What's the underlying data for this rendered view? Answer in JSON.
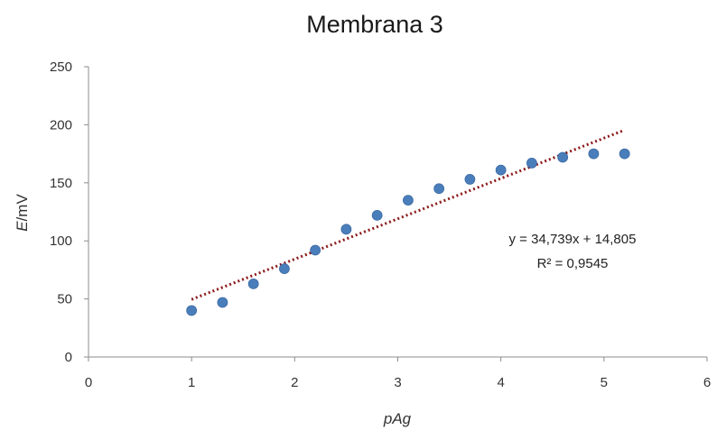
{
  "chart_data": {
    "type": "scatter",
    "title": "Membrana 3",
    "xlabel": "pAg",
    "ylabel_italic": "E",
    "ylabel_rest": "/mV",
    "xlim": [
      0,
      6
    ],
    "ylim": [
      0,
      250
    ],
    "x_ticks": [
      0,
      1,
      2,
      3,
      4,
      5,
      6
    ],
    "y_ticks": [
      0,
      50,
      100,
      150,
      200,
      250
    ],
    "grid": false,
    "legend": "none",
    "series": [
      {
        "color": "#4a7ebb",
        "points": [
          {
            "x": 1.0,
            "y": 40
          },
          {
            "x": 1.3,
            "y": 47
          },
          {
            "x": 1.6,
            "y": 63
          },
          {
            "x": 1.9,
            "y": 76
          },
          {
            "x": 2.2,
            "y": 92
          },
          {
            "x": 2.5,
            "y": 110
          },
          {
            "x": 2.8,
            "y": 122
          },
          {
            "x": 3.1,
            "y": 135
          },
          {
            "x": 3.4,
            "y": 145
          },
          {
            "x": 3.7,
            "y": 153
          },
          {
            "x": 4.0,
            "y": 161
          },
          {
            "x": 4.3,
            "y": 167
          },
          {
            "x": 4.6,
            "y": 172
          },
          {
            "x": 4.9,
            "y": 175
          },
          {
            "x": 5.2,
            "y": 175
          }
        ]
      }
    ],
    "trendline": {
      "type": "linear",
      "slope": 34.739,
      "intercept": 14.805,
      "x_range": [
        1.0,
        5.2
      ],
      "color": "#8b1a1a",
      "style": "dotted",
      "equation": "y = 34,739x + 14,805",
      "r_squared": "R² = 0,9545"
    }
  }
}
